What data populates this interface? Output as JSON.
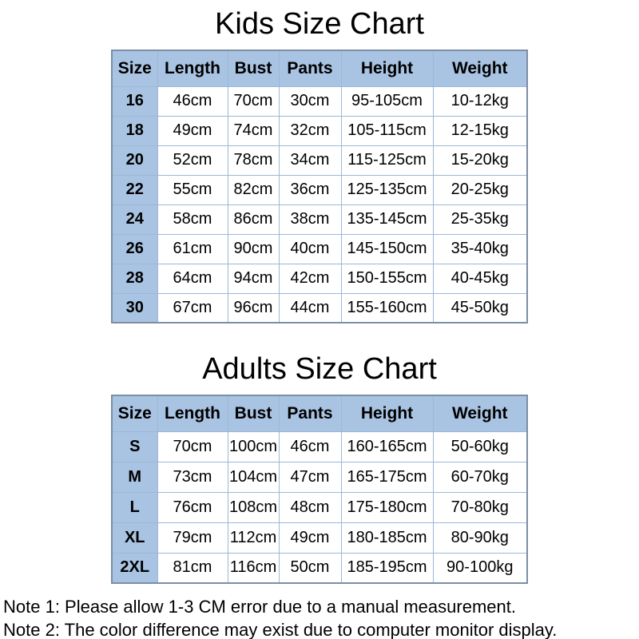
{
  "colors": {
    "page_bg": "#ffffff",
    "text_color": "#000000",
    "header_fill": "#a9c3e2",
    "row_fill": "#ffffff",
    "grid_line": "#9db7d6",
    "outer_border": "#7b8ea6"
  },
  "chart_data": [
    {
      "type": "table",
      "title": "Kids Size Chart",
      "columns": [
        "Size",
        "Length",
        "Bust",
        "Pants",
        "Height",
        "Weight"
      ],
      "rows": [
        [
          "16",
          "46cm",
          "70cm",
          "30cm",
          "95-105cm",
          "10-12kg"
        ],
        [
          "18",
          "49cm",
          "74cm",
          "32cm",
          "105-115cm",
          "12-15kg"
        ],
        [
          "20",
          "52cm",
          "78cm",
          "34cm",
          "115-125cm",
          "15-20kg"
        ],
        [
          "22",
          "55cm",
          "82cm",
          "36cm",
          "125-135cm",
          "20-25kg"
        ],
        [
          "24",
          "58cm",
          "86cm",
          "38cm",
          "135-145cm",
          "25-35kg"
        ],
        [
          "26",
          "61cm",
          "90cm",
          "40cm",
          "145-150cm",
          "35-40kg"
        ],
        [
          "28",
          "64cm",
          "94cm",
          "42cm",
          "150-155cm",
          "40-45kg"
        ],
        [
          "30",
          "67cm",
          "96cm",
          "44cm",
          "155-160cm",
          "45-50kg"
        ]
      ]
    },
    {
      "type": "table",
      "title": "Adults Size Chart",
      "columns": [
        "Size",
        "Length",
        "Bust",
        "Pants",
        "Height",
        "Weight"
      ],
      "rows": [
        [
          "S",
          "70cm",
          "100cm",
          "46cm",
          "160-165cm",
          "50-60kg"
        ],
        [
          "M",
          "73cm",
          "104cm",
          "47cm",
          "165-175cm",
          "60-70kg"
        ],
        [
          "L",
          "76cm",
          "108cm",
          "48cm",
          "175-180cm",
          "70-80kg"
        ],
        [
          "XL",
          "79cm",
          "112cm",
          "49cm",
          "180-185cm",
          "80-90kg"
        ],
        [
          "2XL",
          "81cm",
          "116cm",
          "50cm",
          "185-195cm",
          "90-100kg"
        ]
      ]
    }
  ],
  "notes": {
    "note1": "Note 1: Please allow 1-3 CM error due to a manual measurement.",
    "note2": "Note 2: The color difference may exist due to computer monitor display."
  }
}
